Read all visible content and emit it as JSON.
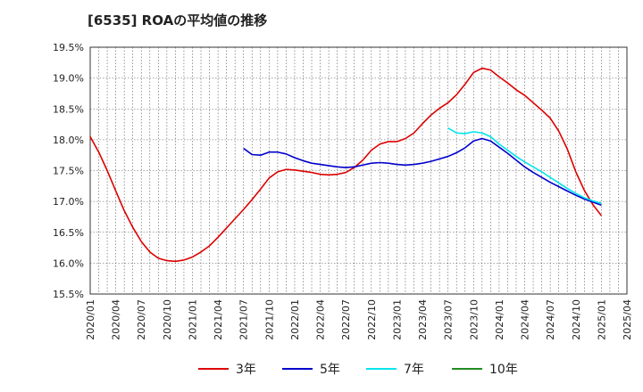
{
  "chart_data": {
    "type": "line",
    "title": "[6535]  ROAの平均値の推移",
    "xlabel": "",
    "ylabel": "",
    "ylim": [
      15.5,
      19.5
    ],
    "yticks": [
      15.5,
      16.0,
      16.5,
      17.0,
      17.5,
      18.0,
      18.5,
      19.0,
      19.5
    ],
    "ytick_labels": [
      "15.5%",
      "16.0%",
      "16.5%",
      "17.0%",
      "17.5%",
      "18.0%",
      "18.5%",
      "19.0%",
      "19.5%"
    ],
    "xticks": [
      "2020/01",
      "2020/04",
      "2020/07",
      "2020/10",
      "2021/01",
      "2021/04",
      "2021/07",
      "2021/10",
      "2022/01",
      "2022/04",
      "2022/07",
      "2022/10",
      "2023/01",
      "2023/04",
      "2023/07",
      "2023/10",
      "2024/01",
      "2024/04",
      "2024/07",
      "2024/10",
      "2025/01",
      "2025/04"
    ],
    "grid": true,
    "legend_position": "bottom",
    "series": [
      {
        "name": "3年",
        "color": "#dd0000",
        "x": [
          "2020/01",
          "2020/02",
          "2020/03",
          "2020/04",
          "2020/05",
          "2020/06",
          "2020/07",
          "2020/08",
          "2020/09",
          "2020/10",
          "2020/11",
          "2020/12",
          "2021/01",
          "2021/02",
          "2021/03",
          "2021/04",
          "2021/05",
          "2021/06",
          "2021/07",
          "2021/08",
          "2021/09",
          "2021/10",
          "2021/11",
          "2021/12",
          "2022/01",
          "2022/02",
          "2022/03",
          "2022/04",
          "2022/05",
          "2022/06",
          "2022/07",
          "2022/08",
          "2022/09",
          "2022/10",
          "2022/11",
          "2022/12",
          "2023/01",
          "2023/02",
          "2023/03",
          "2023/04",
          "2023/05",
          "2023/06",
          "2023/07",
          "2023/08",
          "2023/09",
          "2023/10",
          "2023/11",
          "2023/12",
          "2024/01",
          "2024/02",
          "2024/03",
          "2024/04",
          "2024/05",
          "2024/06",
          "2024/07",
          "2024/08",
          "2024/09",
          "2024/10",
          "2024/11",
          "2024/12",
          "2025/01"
        ],
        "values": [
          18.05,
          17.8,
          17.5,
          17.17,
          16.85,
          16.58,
          16.35,
          16.18,
          16.08,
          16.04,
          16.03,
          16.05,
          16.1,
          16.18,
          16.28,
          16.42,
          16.57,
          16.72,
          16.87,
          17.03,
          17.2,
          17.38,
          17.48,
          17.52,
          17.51,
          17.49,
          17.47,
          17.44,
          17.43,
          17.44,
          17.47,
          17.55,
          17.67,
          17.83,
          17.93,
          17.97,
          17.97,
          18.02,
          18.11,
          18.26,
          18.4,
          18.51,
          18.6,
          18.73,
          18.9,
          19.09,
          19.16,
          19.13,
          19.02,
          18.92,
          18.81,
          18.72,
          18.6,
          18.48,
          18.35,
          18.14,
          17.85,
          17.48,
          17.18,
          16.95,
          16.77
        ]
      },
      {
        "name": "5年",
        "color": "#0000cc",
        "x": [
          "2021/07",
          "2021/08",
          "2021/09",
          "2021/10",
          "2021/11",
          "2021/12",
          "2022/01",
          "2022/02",
          "2022/03",
          "2022/04",
          "2022/05",
          "2022/06",
          "2022/07",
          "2022/08",
          "2022/09",
          "2022/10",
          "2022/11",
          "2022/12",
          "2023/01",
          "2023/02",
          "2023/03",
          "2023/04",
          "2023/05",
          "2023/06",
          "2023/07",
          "2023/08",
          "2023/09",
          "2023/10",
          "2023/11",
          "2023/12",
          "2024/01",
          "2024/02",
          "2024/03",
          "2024/04",
          "2024/05",
          "2024/06",
          "2024/07",
          "2024/08",
          "2024/09",
          "2024/10",
          "2024/11",
          "2024/12",
          "2025/01"
        ],
        "values": [
          17.86,
          17.76,
          17.75,
          17.8,
          17.8,
          17.77,
          17.71,
          17.66,
          17.62,
          17.6,
          17.58,
          17.56,
          17.55,
          17.56,
          17.59,
          17.62,
          17.63,
          17.62,
          17.6,
          17.59,
          17.6,
          17.62,
          17.65,
          17.69,
          17.73,
          17.79,
          17.87,
          17.98,
          18.02,
          17.98,
          17.88,
          17.78,
          17.67,
          17.56,
          17.47,
          17.39,
          17.31,
          17.24,
          17.17,
          17.1,
          17.04,
          16.99,
          16.94
        ]
      },
      {
        "name": "7年",
        "color": "#00e5ee",
        "x": [
          "2023/07",
          "2023/08",
          "2023/09",
          "2023/10",
          "2023/11",
          "2023/12",
          "2024/01",
          "2024/02",
          "2024/03",
          "2024/04",
          "2024/05",
          "2024/06",
          "2024/07",
          "2024/08",
          "2024/09",
          "2024/10",
          "2024/11",
          "2024/12",
          "2025/01"
        ],
        "values": [
          18.19,
          18.11,
          18.1,
          18.13,
          18.11,
          18.05,
          17.93,
          17.83,
          17.73,
          17.64,
          17.56,
          17.48,
          17.39,
          17.3,
          17.21,
          17.13,
          17.06,
          17.01,
          16.97
        ]
      },
      {
        "name": "10年",
        "color": "#228b22",
        "x": [],
        "values": []
      }
    ]
  }
}
